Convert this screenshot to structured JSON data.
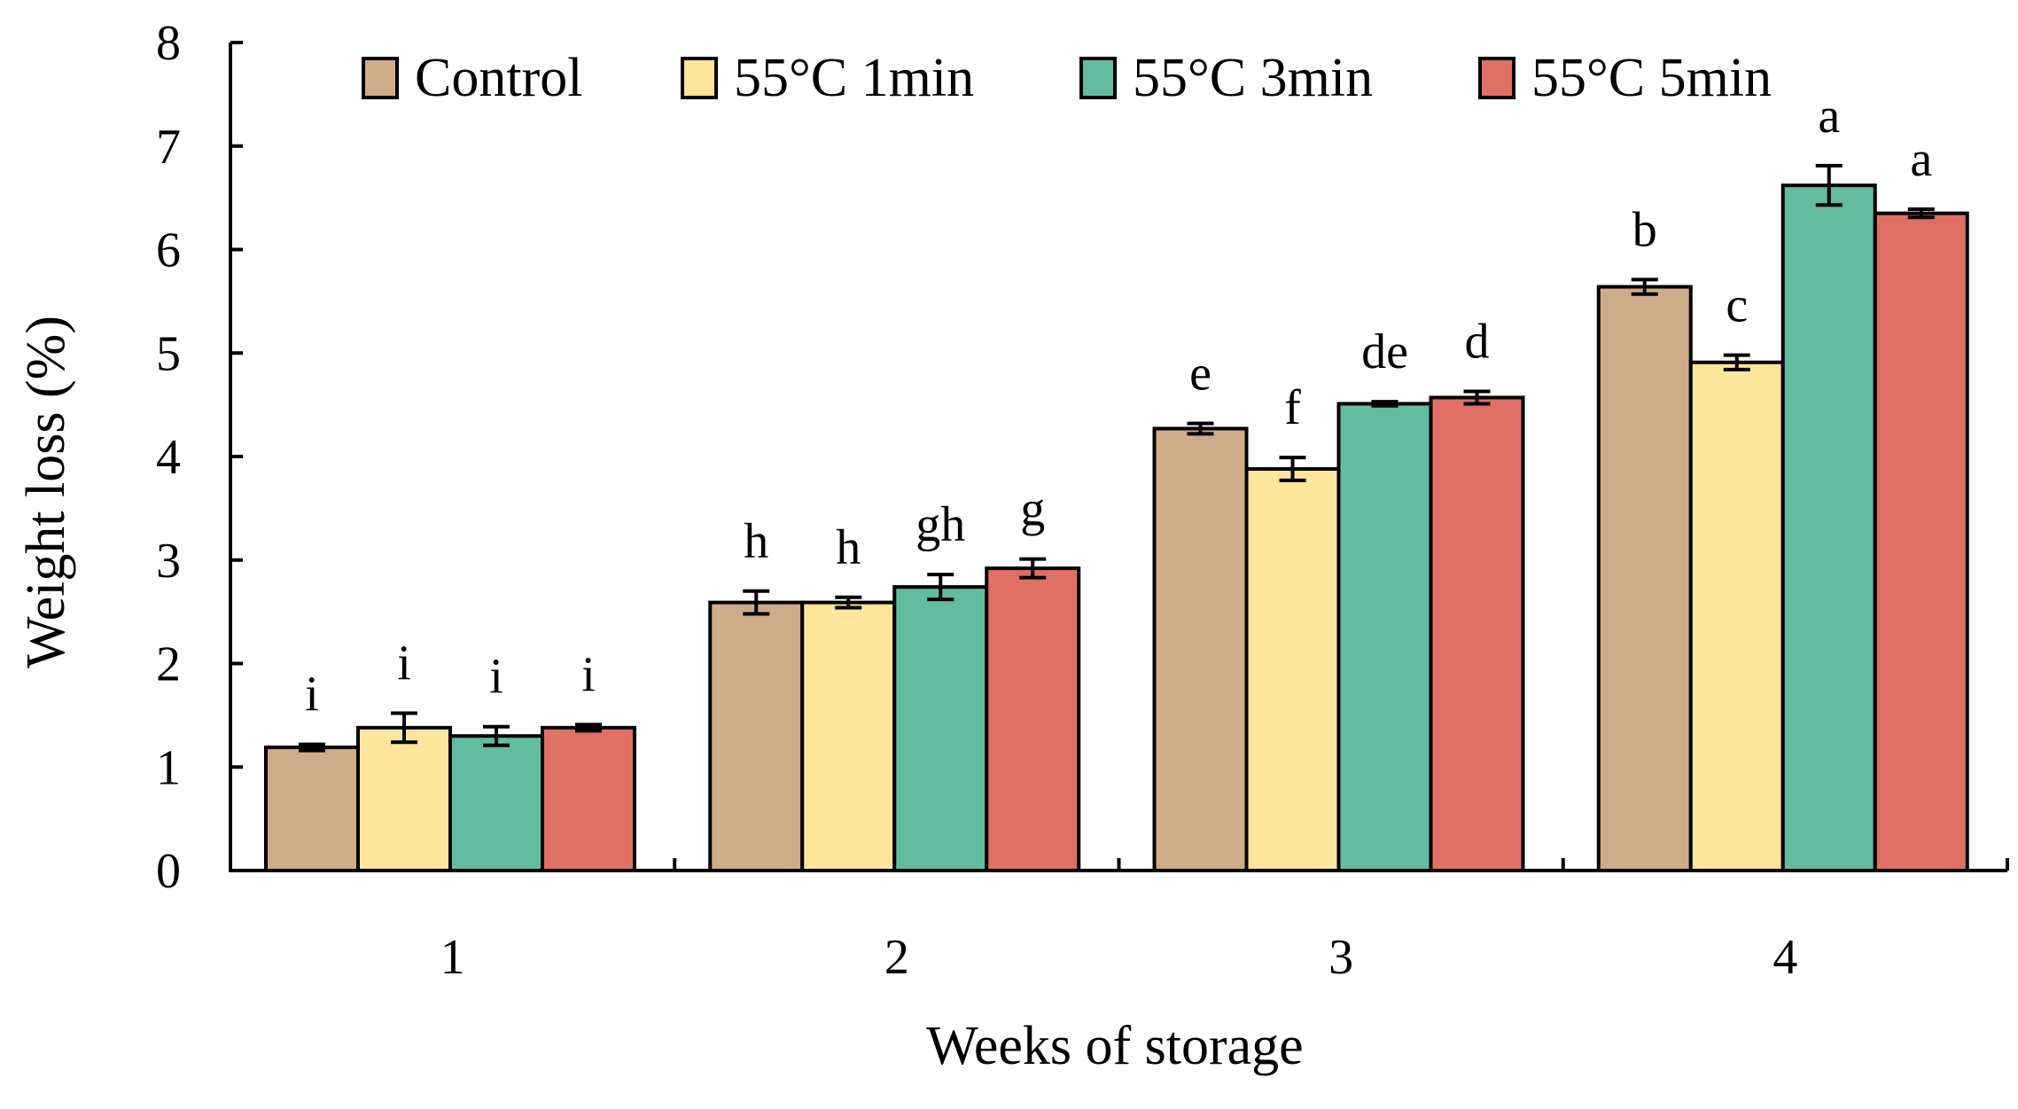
{
  "chart_data": {
    "type": "bar",
    "title": "",
    "xlabel": "Weeks of storage",
    "ylabel": "Weight loss (%)",
    "ylim": [
      0,
      8
    ],
    "yticks": [
      "0",
      "1",
      "2",
      "3",
      "4",
      "5",
      "6",
      "7",
      "8"
    ],
    "categories": [
      "1",
      "2",
      "3",
      "4"
    ],
    "grid": false,
    "legend_position": "top",
    "series": [
      {
        "name": "Control",
        "color": "#cfac89",
        "values": [
          1.19,
          2.59,
          4.27,
          5.64
        ],
        "errors": [
          0.03,
          0.11,
          0.05,
          0.07
        ],
        "labels": [
          "i",
          "h",
          "e",
          "b"
        ]
      },
      {
        "name": "55°C 1min",
        "color": "#fde59b",
        "values": [
          1.38,
          2.59,
          3.88,
          4.91
        ],
        "errors": [
          0.14,
          0.05,
          0.11,
          0.07
        ],
        "labels": [
          "i",
          "h",
          "f",
          "c"
        ]
      },
      {
        "name": "55°C 3min",
        "color": "#63bc9f",
        "values": [
          1.3,
          2.74,
          4.51,
          6.62
        ],
        "errors": [
          0.09,
          0.12,
          0.02,
          0.19
        ],
        "labels": [
          "i",
          "gh",
          "de",
          "a"
        ]
      },
      {
        "name": "55°C 5min",
        "color": "#e07066",
        "values": [
          1.38,
          2.92,
          4.57,
          6.35
        ],
        "errors": [
          0.03,
          0.09,
          0.06,
          0.04
        ],
        "labels": [
          "i",
          "g",
          "d",
          "a"
        ]
      }
    ]
  }
}
